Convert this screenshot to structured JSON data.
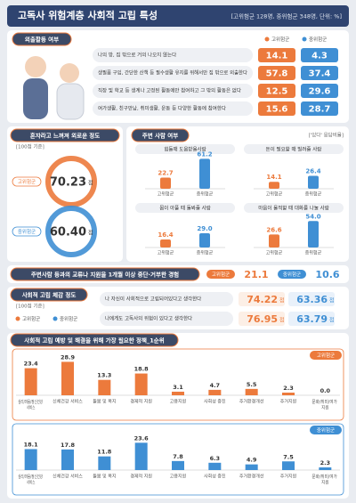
{
  "header": {
    "title": "고독사 위험계층 사회적 고립 특성",
    "note": "[고위험군 128명, 중위험군 348명, 단위: %]"
  },
  "groups": {
    "high": "고위험군",
    "mid": "중위험군",
    "high_color": "#ec7a3c",
    "mid_color": "#3f8fd4"
  },
  "outing": {
    "title": "외출활동 여부",
    "items": [
      {
        "label": "나의 방, 집 밖으로 거의 나오지 않는다",
        "values": [
          14.1,
          4.3
        ]
      },
      {
        "label": "생필품 구입, 간단한 산책 등 필수생활 유지를 위해서만 집 밖으로 외출한다",
        "values": [
          57.8,
          37.4
        ]
      },
      {
        "label": "직장 및 학교 등 생계나 고정된 활동에만 참여하고 그 밖의 활동은 없다",
        "values": [
          12.5,
          29.6
        ]
      },
      {
        "label": "여가생활, 친구만남, 취미생활, 운동 등 다양한 활동에 참여한다",
        "values": [
          15.6,
          28.7
        ]
      }
    ]
  },
  "loneliness": {
    "title": "혼자라고 느껴져 외로운 정도",
    "note": "[100점 기준]",
    "unit": "점",
    "values": [
      70.23,
      60.4
    ],
    "value_labels": [
      "70.23",
      "60.40"
    ]
  },
  "people": {
    "title": "주변 사람 여부",
    "note": "['있다' 응답비율]",
    "charts": [
      {
        "title": "힘들때 도움받을사람",
        "values": [
          22.7,
          61.2
        ]
      },
      {
        "title": "돈이 필요할 때 빌려줄 사람",
        "values": [
          14.1,
          26.4
        ]
      },
      {
        "title": "몸이 아플 때 돌봐줄 사람",
        "values": [
          16.4,
          29
        ],
        "value_labels": [
          "16.4",
          "29.0"
        ]
      },
      {
        "title": "마음이 울적할 때 대화를 나눌 사람",
        "values": [
          26.6,
          54
        ],
        "value_labels": [
          "26.6",
          "54.0"
        ]
      }
    ]
  },
  "cutoff": {
    "title": "주변사람 등과의 교류나 지원을 1개월 이상 중단·거부한 경험",
    "values": [
      21.1,
      10.6
    ]
  },
  "isolation": {
    "title": "사회적 고립 체감 정도",
    "note": "[100점 기준]",
    "unit": "점",
    "items": [
      {
        "label": "나 자신이 사회적으로 고립되어있다고 생각한다",
        "values": [
          74.22,
          63.36
        ]
      },
      {
        "label": "나에게도 고독사의 위험이 있다고 생각한다",
        "values": [
          76.95,
          63.79
        ]
      }
    ]
  },
  "policy": {
    "type": "bar",
    "title": "사회적 고립 예방 및 해결을 위해 가장 필요한 정책_1순위",
    "categories": [
      "심리/마음/정신건강 서비스",
      "신체건강 서비스",
      "돌봄 및 복지",
      "경제적 지원",
      "고용지원",
      "사회성 증진",
      "주거환경개선",
      "주거지원",
      "문화/취미/여가 지원"
    ],
    "series": [
      {
        "name": "고위험군",
        "color": "#ec7a3c",
        "values": [
          23.4,
          28.9,
          13.3,
          18.8,
          3.1,
          4.7,
          5.5,
          2.3,
          0
        ],
        "value_labels": [
          "23.4",
          "28.9",
          "13.3",
          "18.8",
          "3.1",
          "4.7",
          "5.5",
          "2.3",
          "0.0"
        ]
      },
      {
        "name": "중위험군",
        "color": "#3f8fd4",
        "values": [
          18.1,
          17.8,
          11.8,
          23.6,
          7.8,
          6.3,
          4.9,
          7.5,
          2.3
        ]
      }
    ]
  }
}
